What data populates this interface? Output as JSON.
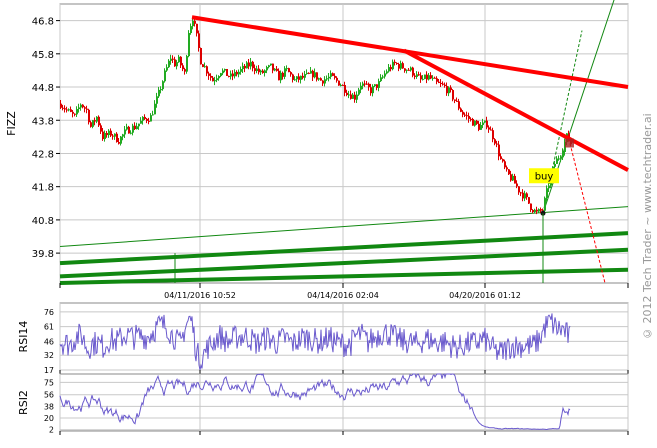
{
  "watermark": "© 2012 Tech Trader ~ www.techtrader.ai",
  "annotation": "buy",
  "colors": {
    "up": "#22aa22",
    "down": "#dd0000",
    "trend_red": "#ff0000",
    "trend_green": "#118811",
    "rsi": "#6a5acd",
    "grid": "#c8c8c8"
  },
  "chart_data": [
    {
      "type": "candlestick",
      "ylabel": "FIZZ",
      "ylim": [
        38.9,
        47.3
      ],
      "yticks": [
        39.8,
        40.8,
        41.8,
        42.8,
        43.8,
        44.8,
        45.8,
        46.8
      ],
      "x_labels": [
        "04/11/2016 10:52",
        "04/14/2016 02:04",
        "04/20/2016 01:12"
      ],
      "path": [
        [
          0,
          44.3
        ],
        [
          6,
          44.1
        ],
        [
          14,
          43.9
        ],
        [
          20,
          44.3
        ],
        [
          26,
          44.1
        ],
        [
          30,
          43.6
        ],
        [
          36,
          43.9
        ],
        [
          42,
          43.3
        ],
        [
          50,
          43.4
        ],
        [
          58,
          43.2
        ],
        [
          66,
          43.5
        ],
        [
          74,
          43.6
        ],
        [
          82,
          43.8
        ],
        [
          90,
          43.9
        ],
        [
          98,
          44.6
        ],
        [
          104,
          45.2
        ],
        [
          110,
          45.7
        ],
        [
          114,
          45.5
        ],
        [
          118,
          45.6
        ],
        [
          124,
          45.2
        ],
        [
          128,
          46.5
        ],
        [
          132,
          46.9
        ],
        [
          136,
          46.3
        ],
        [
          140,
          45.6
        ],
        [
          146,
          45.3
        ],
        [
          152,
          45.0
        ],
        [
          160,
          45.3
        ],
        [
          170,
          45.1
        ],
        [
          180,
          45.3
        ],
        [
          190,
          45.5
        ],
        [
          200,
          45.2
        ],
        [
          210,
          45.4
        ],
        [
          218,
          45.1
        ],
        [
          226,
          45.3
        ],
        [
          234,
          45.0
        ],
        [
          244,
          45.1
        ],
        [
          252,
          45.2
        ],
        [
          260,
          45.0
        ],
        [
          270,
          45.1
        ],
        [
          280,
          44.9
        ],
        [
          288,
          44.6
        ],
        [
          294,
          44.5
        ],
        [
          300,
          44.9
        ],
        [
          310,
          44.7
        ],
        [
          318,
          44.9
        ],
        [
          326,
          45.3
        ],
        [
          334,
          45.5
        ],
        [
          342,
          45.4
        ],
        [
          350,
          45.3
        ],
        [
          360,
          45.0
        ],
        [
          368,
          45.1
        ],
        [
          376,
          44.9
        ],
        [
          384,
          44.8
        ],
        [
          390,
          44.6
        ],
        [
          396,
          44.3
        ],
        [
          402,
          44.0
        ],
        [
          410,
          43.8
        ],
        [
          418,
          43.6
        ],
        [
          426,
          43.7
        ],
        [
          434,
          43.2
        ],
        [
          440,
          42.6
        ],
        [
          446,
          42.2
        ],
        [
          452,
          42.0
        ],
        [
          458,
          41.7
        ],
        [
          464,
          41.5
        ],
        [
          470,
          41.2
        ],
        [
          476,
          41.0
        ],
        [
          482,
          41.1
        ],
        [
          488,
          41.9
        ],
        [
          494,
          42.5
        ],
        [
          500,
          42.8
        ],
        [
          506,
          43.3
        ],
        [
          510,
          43.1
        ]
      ],
      "trendlines_red": [
        {
          "from": [
            132,
            46.9
          ],
          "to": [
            568,
            44.8
          ]
        },
        {
          "from": [
            344,
            45.9
          ],
          "to": [
            568,
            42.3
          ]
        }
      ],
      "trendlines_green_thick": [
        {
          "from": [
            0,
            39.5
          ],
          "to": [
            568,
            40.4
          ]
        },
        {
          "from": [
            0,
            39.1
          ],
          "to": [
            568,
            39.9
          ]
        },
        {
          "from": [
            0,
            38.9
          ],
          "to": [
            568,
            39.3
          ]
        }
      ],
      "trendlines_green_thin": [
        {
          "from": [
            0,
            40.0
          ],
          "to": [
            568,
            41.2
          ]
        },
        {
          "from": [
            483,
            41.0
          ],
          "to": [
            556,
            47.6
          ]
        },
        {
          "from": [
            483,
            41.0
          ],
          "to": [
            522,
            46.5
          ]
        }
      ],
      "buy_point": [
        483,
        41.0
      ]
    },
    {
      "type": "line",
      "ylabel": "RSI14",
      "ylim": [
        17,
        85
      ],
      "yticks": [
        17,
        32,
        46,
        61,
        76
      ]
    },
    {
      "type": "line",
      "ylabel": "RSI2",
      "ylim": [
        0,
        88
      ],
      "yticks": [
        2,
        20,
        38,
        56,
        75
      ]
    }
  ]
}
